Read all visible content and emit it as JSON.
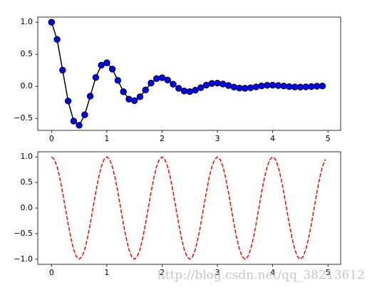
{
  "chart_data": [
    {
      "type": "line",
      "x": [
        0,
        0.1,
        0.2,
        0.3,
        0.4,
        0.5,
        0.6,
        0.7,
        0.8,
        0.9,
        1,
        1.1,
        1.2,
        1.3,
        1.4,
        1.5,
        1.6,
        1.7,
        1.8,
        1.9,
        2,
        2.1,
        2.2,
        2.3,
        2.4,
        2.5,
        2.6,
        2.7,
        2.8,
        2.9,
        3,
        3.1,
        3.2,
        3.3,
        3.4,
        3.5,
        3.6,
        3.7,
        3.8,
        3.9,
        4,
        4.1,
        4.2,
        4.3,
        4.4,
        4.5,
        4.6,
        4.7,
        4.8,
        4.9
      ],
      "series": [
        {
          "color": "#000000",
          "linestyle": "solid",
          "marker": "o",
          "marker_color": "#0000ff",
          "values": [
            1,
            0.732,
            0.253,
            -0.229,
            -0.542,
            -0.607,
            -0.444,
            -0.153,
            0.139,
            0.329,
            0.368,
            0.269,
            0.093,
            -0.084,
            -0.2,
            -0.223,
            -0.163,
            -0.056,
            0.051,
            0.121,
            0.135,
            0.099,
            0.034,
            -0.031,
            -0.073,
            -0.082,
            -0.06,
            -0.021,
            0.019,
            0.045,
            0.05,
            0.036,
            0.013,
            -0.011,
            -0.027,
            -0.03,
            -0.022,
            -0.008,
            0.007,
            0.016,
            0.018,
            0.013,
            0.005,
            -0.004,
            -0.01,
            -0.011,
            -0.008,
            -0.003,
            0.003,
            0.006
          ]
        }
      ],
      "xlim": [
        -0.249,
        5.229
      ],
      "xticks": [
        0,
        1,
        2,
        3,
        4,
        5
      ],
      "ylim": [
        -0.687,
        1.08
      ],
      "yticks": [
        {
          "value": -0.5,
          "label": "−0.5"
        },
        {
          "value": 0,
          "label": "0.0"
        },
        {
          "value": 0.5,
          "label": "0.5"
        },
        {
          "value": 1,
          "label": "1.0"
        }
      ],
      "grid": false
    },
    {
      "type": "line",
      "x": [
        0,
        0.05,
        0.1,
        0.15,
        0.2,
        0.25,
        0.3,
        0.35,
        0.4,
        0.45,
        0.5,
        0.55,
        0.6,
        0.65,
        0.7,
        0.75,
        0.8,
        0.85,
        0.9,
        0.95,
        1,
        1.05,
        1.1,
        1.15,
        1.2,
        1.25,
        1.3,
        1.35,
        1.4,
        1.45,
        1.5,
        1.55,
        1.6,
        1.65,
        1.7,
        1.75,
        1.8,
        1.85,
        1.9,
        1.95,
        2,
        2.05,
        2.1,
        2.15,
        2.2,
        2.25,
        2.3,
        2.35,
        2.4,
        2.45,
        2.5,
        2.55,
        2.6,
        2.65,
        2.7,
        2.75,
        2.8,
        2.85,
        2.9,
        2.95,
        3,
        3.05,
        3.1,
        3.15,
        3.2,
        3.25,
        3.3,
        3.35,
        3.4,
        3.45,
        3.5,
        3.55,
        3.6,
        3.65,
        3.7,
        3.75,
        3.8,
        3.85,
        3.9,
        3.95,
        4,
        4.05,
        4.1,
        4.15,
        4.2,
        4.25,
        4.3,
        4.35,
        4.4,
        4.45,
        4.5,
        4.55,
        4.6,
        4.65,
        4.7,
        4.75,
        4.8,
        4.85,
        4.9,
        4.95
      ],
      "series": [
        {
          "color": "#ff0000",
          "linestyle": "dashed",
          "values": [
            1,
            0.951,
            0.809,
            0.588,
            0.309,
            0,
            -0.309,
            -0.588,
            -0.809,
            -0.951,
            -1,
            -0.951,
            -0.809,
            -0.588,
            -0.309,
            0,
            0.309,
            0.588,
            0.809,
            0.951,
            1,
            0.951,
            0.809,
            0.588,
            0.309,
            0,
            -0.309,
            -0.588,
            -0.809,
            -0.951,
            -1,
            -0.951,
            -0.809,
            -0.588,
            -0.309,
            0,
            0.309,
            0.588,
            0.809,
            0.951,
            1,
            0.951,
            0.809,
            0.588,
            0.309,
            0,
            -0.309,
            -0.588,
            -0.809,
            -0.951,
            -1,
            -0.951,
            -0.809,
            -0.588,
            -0.309,
            0,
            0.309,
            0.588,
            0.809,
            0.951,
            1,
            0.951,
            0.809,
            0.588,
            0.309,
            0,
            -0.309,
            -0.588,
            -0.809,
            -0.951,
            -1,
            -0.951,
            -0.809,
            -0.588,
            -0.309,
            0,
            0.309,
            0.588,
            0.809,
            0.951,
            1,
            0.951,
            0.809,
            0.588,
            0.309,
            0,
            -0.309,
            -0.588,
            -0.809,
            -0.951,
            -1,
            -0.951,
            -0.809,
            -0.588,
            -0.309,
            0,
            0.309,
            0.588,
            0.809,
            0.951
          ]
        }
      ],
      "xlim": [
        -0.249,
        5.229
      ],
      "xticks": [
        0,
        1,
        2,
        3,
        4,
        5
      ],
      "ylim": [
        -1.1,
        1.1
      ],
      "yticks": [
        {
          "value": -1,
          "label": "−1.0"
        },
        {
          "value": -0.5,
          "label": "−0.5"
        },
        {
          "value": 0,
          "label": "0.0"
        },
        {
          "value": 0.5,
          "label": "0.5"
        },
        {
          "value": 1,
          "label": "1.0"
        }
      ],
      "grid": false,
      "watermark": "http://blog.csdn.net/qq_38213612"
    }
  ]
}
